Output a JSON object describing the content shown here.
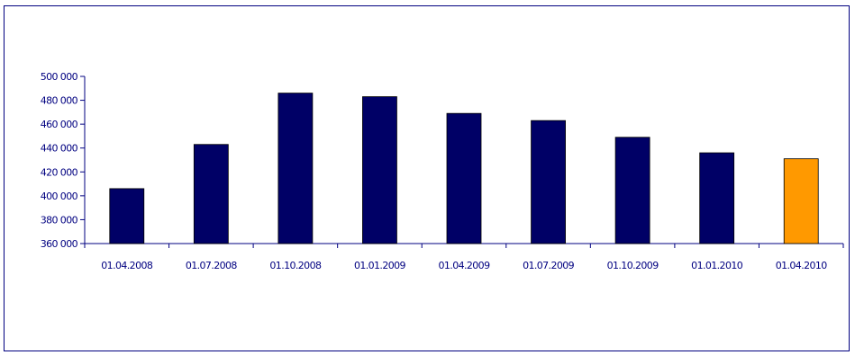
{
  "chart_data": {
    "type": "bar",
    "title": "",
    "xlabel": "",
    "ylabel": "",
    "categories": [
      "01.04.2008",
      "01.07.2008",
      "01.10.2008",
      "01.01.2009",
      "01.04.2009",
      "01.07.2009",
      "01.10.2009",
      "01.01.2010",
      "01.04.2010"
    ],
    "values": [
      406000,
      443000,
      486000,
      483000,
      469000,
      463000,
      449000,
      436000,
      431000
    ],
    "bar_colors": [
      "#000066",
      "#000066",
      "#000066",
      "#000066",
      "#000066",
      "#000066",
      "#000066",
      "#000066",
      "#FF9900"
    ],
    "ylim": [
      360000,
      500000
    ],
    "y_ticks": [
      360000,
      380000,
      400000,
      420000,
      440000,
      460000,
      480000,
      500000
    ],
    "y_tick_labels": [
      "360 000",
      "380 000",
      "400 000",
      "420 000",
      "440 000",
      "460 000",
      "480 000",
      "500 000"
    ],
    "grid": false,
    "legend": "none"
  }
}
